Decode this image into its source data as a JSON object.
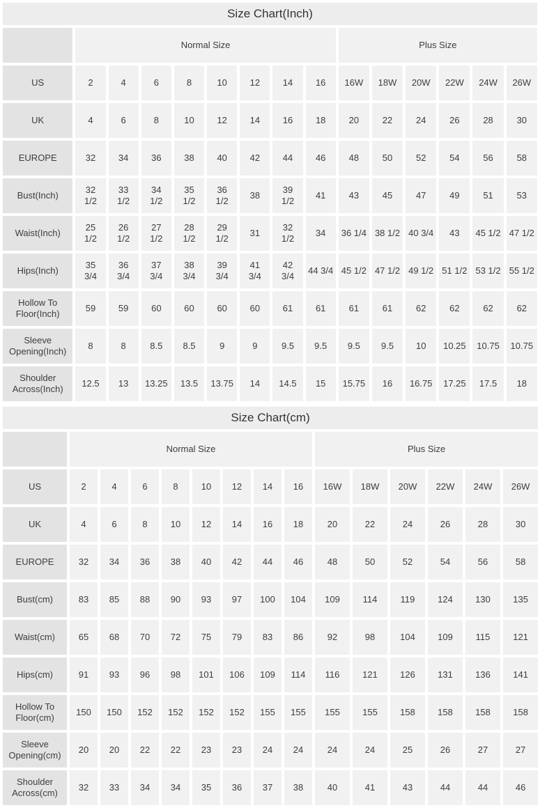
{
  "colors": {
    "title_bg": "#ededed",
    "label_bg": "#e3e3e3",
    "cell_bg": "#f1f1f1",
    "text": "#3d3d3d"
  },
  "tables": [
    {
      "title": "Size Chart(Inch)",
      "group_headers": {
        "normal": "Normal Size",
        "plus": "Plus Size"
      },
      "normal_size_count": 8,
      "plus_size_count": 6,
      "rows": [
        {
          "label": "US",
          "values": [
            "2",
            "4",
            "6",
            "8",
            "10",
            "12",
            "14",
            "16",
            "16W",
            "18W",
            "20W",
            "22W",
            "24W",
            "26W"
          ]
        },
        {
          "label": "UK",
          "values": [
            "4",
            "6",
            "8",
            "10",
            "12",
            "14",
            "16",
            "18",
            "20",
            "22",
            "24",
            "26",
            "28",
            "30"
          ]
        },
        {
          "label": "EUROPE",
          "values": [
            "32",
            "34",
            "36",
            "38",
            "40",
            "42",
            "44",
            "46",
            "48",
            "50",
            "52",
            "54",
            "56",
            "58"
          ]
        },
        {
          "label": "Bust(Inch)",
          "values": [
            "32\n1/2",
            "33\n1/2",
            "34\n1/2",
            "35\n1/2",
            "36\n1/2",
            "38",
            "39\n1/2",
            "41",
            "43",
            "45",
            "47",
            "49",
            "51",
            "53"
          ]
        },
        {
          "label": "Waist(Inch)",
          "values": [
            "25\n1/2",
            "26\n1/2",
            "27\n1/2",
            "28\n1/2",
            "29\n1/2",
            "31",
            "32\n1/2",
            "34",
            "36 1/4",
            "38 1/2",
            "40 3/4",
            "43",
            "45 1/2",
            "47 1/2"
          ]
        },
        {
          "label": "Hips(Inch)",
          "values": [
            "35\n3/4",
            "36\n3/4",
            "37\n3/4",
            "38\n3/4",
            "39\n3/4",
            "41\n3/4",
            "42\n3/4",
            "44 3/4",
            "45 1/2",
            "47 1/2",
            "49 1/2",
            "51 1/2",
            "53 1/2",
            "55 1/2"
          ]
        },
        {
          "label": "Hollow To\nFloor(Inch)",
          "values": [
            "59",
            "59",
            "60",
            "60",
            "60",
            "60",
            "61",
            "61",
            "61",
            "61",
            "62",
            "62",
            "62",
            "62"
          ]
        },
        {
          "label": "Sleeve\nOpening(Inch)",
          "values": [
            "8",
            "8",
            "8.5",
            "8.5",
            "9",
            "9",
            "9.5",
            "9.5",
            "9.5",
            "9.5",
            "10",
            "10.25",
            "10.75",
            "10.75"
          ]
        },
        {
          "label": "Shoulder\nAcross(Inch)",
          "values": [
            "12.5",
            "13",
            "13.25",
            "13.5",
            "13.75",
            "14",
            "14.5",
            "15",
            "15.75",
            "16",
            "16.75",
            "17.25",
            "17.5",
            "18"
          ]
        }
      ]
    },
    {
      "title": "Size Chart(cm)",
      "group_headers": {
        "normal": "Normal Size",
        "plus": "Plus Size"
      },
      "normal_size_count": 8,
      "plus_size_count": 6,
      "rows": [
        {
          "label": "US",
          "values": [
            "2",
            "4",
            "6",
            "8",
            "10",
            "12",
            "14",
            "16",
            "16W",
            "18W",
            "20W",
            "22W",
            "24W",
            "26W"
          ]
        },
        {
          "label": "UK",
          "values": [
            "4",
            "6",
            "8",
            "10",
            "12",
            "14",
            "16",
            "18",
            "20",
            "22",
            "24",
            "26",
            "28",
            "30"
          ]
        },
        {
          "label": "EUROPE",
          "values": [
            "32",
            "34",
            "36",
            "38",
            "40",
            "42",
            "44",
            "46",
            "48",
            "50",
            "52",
            "54",
            "56",
            "58"
          ]
        },
        {
          "label": "Bust(cm)",
          "values": [
            "83",
            "85",
            "88",
            "90",
            "93",
            "97",
            "100",
            "104",
            "109",
            "114",
            "119",
            "124",
            "130",
            "135"
          ]
        },
        {
          "label": "Waist(cm)",
          "values": [
            "65",
            "68",
            "70",
            "72",
            "75",
            "79",
            "83",
            "86",
            "92",
            "98",
            "104",
            "109",
            "115",
            "121"
          ]
        },
        {
          "label": "Hips(cm)",
          "values": [
            "91",
            "93",
            "96",
            "98",
            "101",
            "106",
            "109",
            "114",
            "116",
            "121",
            "126",
            "131",
            "136",
            "141"
          ]
        },
        {
          "label": "Hollow To\nFloor(cm)",
          "values": [
            "150",
            "150",
            "152",
            "152",
            "152",
            "152",
            "155",
            "155",
            "155",
            "155",
            "158",
            "158",
            "158",
            "158"
          ]
        },
        {
          "label": "Sleeve\nOpening(cm)",
          "values": [
            "20",
            "20",
            "22",
            "22",
            "23",
            "23",
            "24",
            "24",
            "24",
            "24",
            "25",
            "26",
            "27",
            "27"
          ]
        },
        {
          "label": "Shoulder\nAcross(cm)",
          "values": [
            "32",
            "33",
            "34",
            "34",
            "35",
            "36",
            "37",
            "38",
            "40",
            "41",
            "43",
            "44",
            "44",
            "46"
          ]
        }
      ]
    }
  ]
}
